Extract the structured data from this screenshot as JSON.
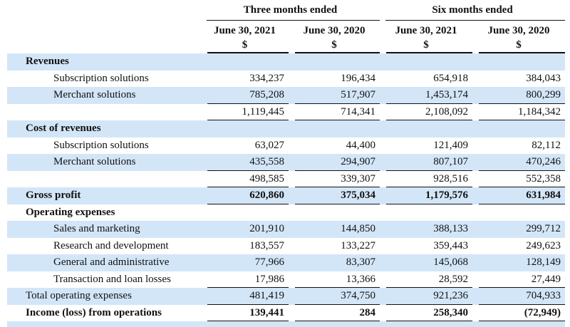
{
  "header": {
    "groups": [
      {
        "label": "Three months ended"
      },
      {
        "label": "Six months ended"
      }
    ],
    "columns": [
      {
        "date": "June 30, 2021",
        "unit": "$"
      },
      {
        "date": "June 30, 2020",
        "unit": "$"
      },
      {
        "date": "June 30, 2021",
        "unit": "$"
      },
      {
        "date": "June 30, 2020",
        "unit": "$"
      }
    ]
  },
  "rows": [
    {
      "label": "Revenues",
      "values": [
        "",
        "",
        "",
        ""
      ]
    },
    {
      "label": "Subscription solutions",
      "values": [
        "334,237",
        "196,434",
        "654,918",
        "384,043"
      ]
    },
    {
      "label": "Merchant solutions",
      "values": [
        "785,208",
        "517,907",
        "1,453,174",
        "800,299"
      ]
    },
    {
      "label": "",
      "values": [
        "1,119,445",
        "714,341",
        "2,108,092",
        "1,184,342"
      ]
    },
    {
      "label": "Cost of revenues",
      "values": [
        "",
        "",
        "",
        ""
      ]
    },
    {
      "label": "Subscription solutions",
      "values": [
        "63,027",
        "44,400",
        "121,409",
        "82,112"
      ]
    },
    {
      "label": "Merchant solutions",
      "values": [
        "435,558",
        "294,907",
        "807,107",
        "470,246"
      ]
    },
    {
      "label": "",
      "values": [
        "498,585",
        "339,307",
        "928,516",
        "552,358"
      ]
    },
    {
      "label": "Gross profit",
      "values": [
        "620,860",
        "375,034",
        "1,179,576",
        "631,984"
      ]
    },
    {
      "label": "Operating expenses",
      "values": [
        "",
        "",
        "",
        ""
      ]
    },
    {
      "label": "Sales and marketing",
      "values": [
        "201,910",
        "144,850",
        "388,133",
        "299,712"
      ]
    },
    {
      "label": "Research and development",
      "values": [
        "183,557",
        "133,227",
        "359,443",
        "249,623"
      ]
    },
    {
      "label": "General and administrative",
      "values": [
        "77,966",
        "83,307",
        "145,068",
        "128,149"
      ]
    },
    {
      "label": "Transaction and loan losses",
      "values": [
        "17,986",
        "13,366",
        "28,592",
        "27,449"
      ]
    },
    {
      "label": "Total operating expenses",
      "values": [
        "481,419",
        "374,750",
        "921,236",
        "704,933"
      ]
    },
    {
      "label": "Income (loss) from operations",
      "values": [
        "139,441",
        "284",
        "258,340",
        "(72,949)"
      ]
    }
  ],
  "colors": {
    "row_band": "#d3e6f8",
    "text": "#111111",
    "rule": "#111111"
  }
}
